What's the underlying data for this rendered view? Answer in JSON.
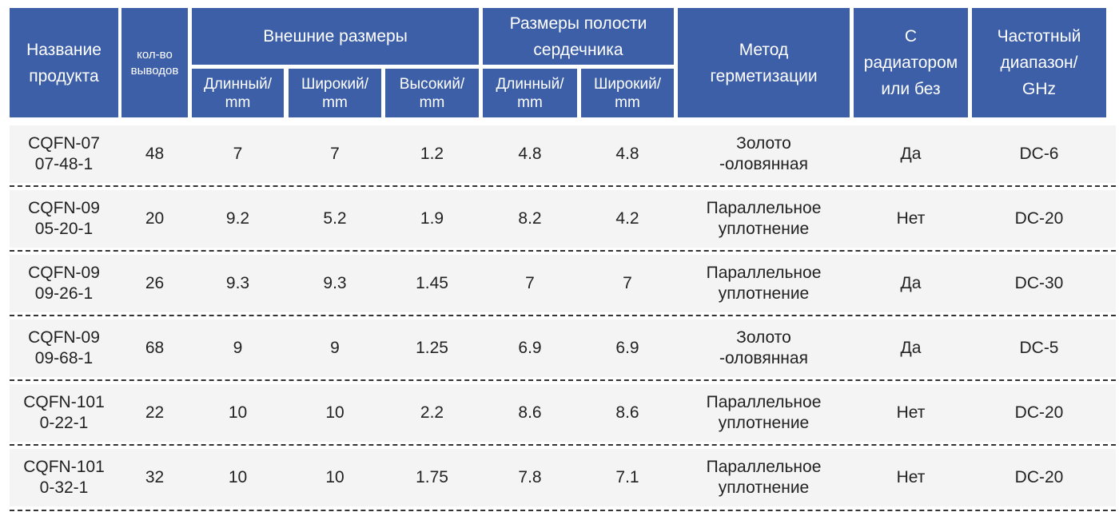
{
  "header": {
    "product_name": "Название\nпродукта",
    "pin_count": "кол-во\nвыводов",
    "outer_dims": "Внешние размеры",
    "cavity_dims": "Размеры полости\nсердечника",
    "sealing": "Метод\nгерметизации",
    "heatsink": "С\nрадиатором\nили без",
    "freq": "Частотный\nдиапазон/\nGHz",
    "length_mm": "Длинный/\nmm",
    "width_mm": "Широкий/\nmm",
    "height_mm": "Высокий/\nmm",
    "cavity_length_mm": "Длинный/\nmm",
    "cavity_width_mm": "Широкий/\nmm"
  },
  "rows": [
    {
      "name": "CQFN-07\n07-48-1",
      "pins": "48",
      "length": "7",
      "width": "7",
      "height": "1.2",
      "cavity_length": "4.8",
      "cavity_width": "4.8",
      "sealing": "Золото\n-оловянная",
      "heatsink": "Да",
      "freq": "DC-6"
    },
    {
      "name": "CQFN-09\n05-20-1",
      "pins": "20",
      "length": "9.2",
      "width": "5.2",
      "height": "1.9",
      "cavity_length": "8.2",
      "cavity_width": "4.2",
      "sealing": "Параллельное\nуплотнение",
      "heatsink": "Нет",
      "freq": "DC-20"
    },
    {
      "name": "CQFN-09\n09-26-1",
      "pins": "26",
      "length": "9.3",
      "width": "9.3",
      "height": "1.45",
      "cavity_length": "7",
      "cavity_width": "7",
      "sealing": "Параллельное\nуплотнение",
      "heatsink": "Да",
      "freq": "DC-30"
    },
    {
      "name": "CQFN-09\n09-68-1",
      "pins": "68",
      "length": "9",
      "width": "9",
      "height": "1.25",
      "cavity_length": "6.9",
      "cavity_width": "6.9",
      "sealing": "Золото\n-оловянная",
      "heatsink": "Да",
      "freq": "DC-5"
    },
    {
      "name": "CQFN-101\n0-22-1",
      "pins": "22",
      "length": "10",
      "width": "10",
      "height": "2.2",
      "cavity_length": "8.6",
      "cavity_width": "8.6",
      "sealing": "Параллельное\nуплотнение",
      "heatsink": "Нет",
      "freq": "DC-20"
    },
    {
      "name": "CQFN-101\n0-32-1",
      "pins": "32",
      "length": "10",
      "width": "10",
      "height": "1.75",
      "cavity_length": "7.8",
      "cavity_width": "7.1",
      "sealing": "Параллельное\nуплотнение",
      "heatsink": "Нет",
      "freq": "DC-20"
    }
  ],
  "colors": {
    "header_bg": "#3d5fa8",
    "header_text": "#ffffff",
    "row_bg": "#f4f4f4",
    "text": "#222222"
  }
}
